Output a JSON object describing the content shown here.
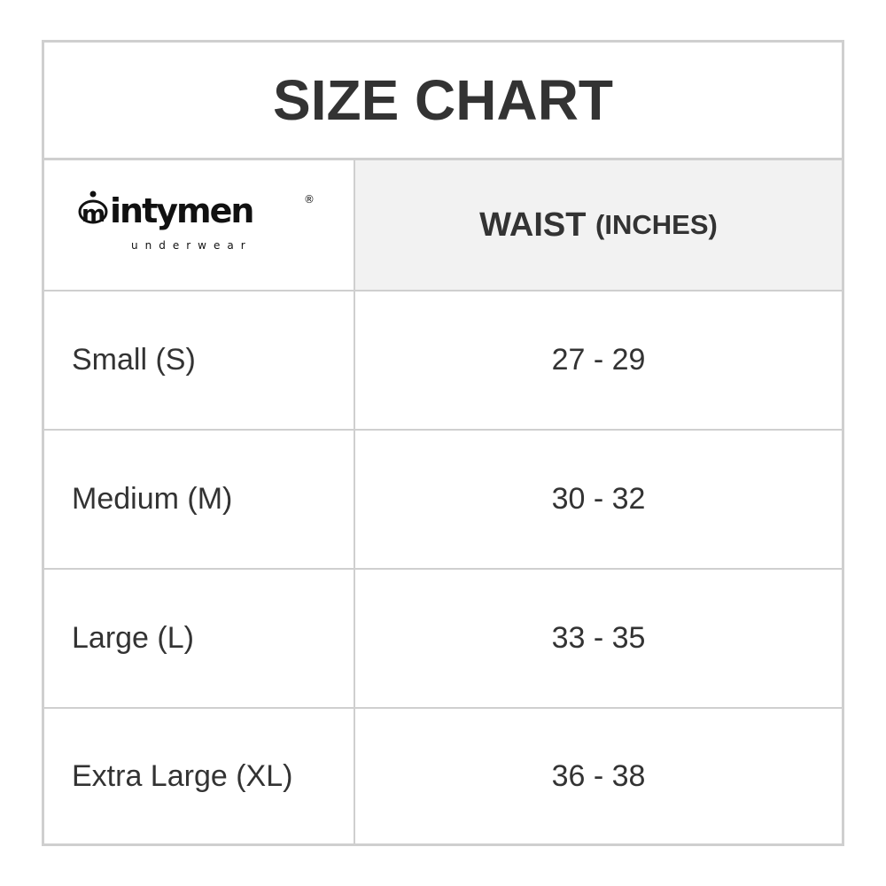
{
  "title": "SIZE CHART",
  "logo": {
    "brand": "intymen",
    "tagline": "underwear",
    "mark": "®"
  },
  "header": {
    "column_main": "WAIST",
    "column_unit": "(INCHES)"
  },
  "rows": [
    {
      "size": "Small (S)",
      "waist": "27 - 29"
    },
    {
      "size": "Medium (M)",
      "waist": "30 - 32"
    },
    {
      "size": "Large (L)",
      "waist": "33 - 35"
    },
    {
      "size": "Extra Large (XL)",
      "waist": "36 - 38"
    }
  ],
  "colors": {
    "border": "#cfcfcf",
    "header_bg": "#f2f2f2",
    "text": "#333333"
  }
}
